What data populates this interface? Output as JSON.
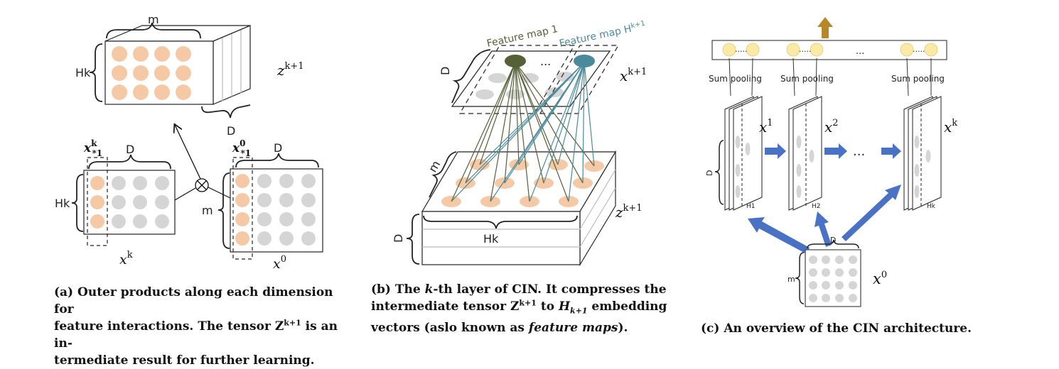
{
  "panel_a": {
    "m": "m",
    "hk": "Hk",
    "d": "D",
    "zk1": "z",
    "zk1_sup": "k+1",
    "xk1": "x",
    "xk1_sup": "k",
    "xk1_sub": "*1",
    "x01": "x",
    "x01_sup": "0",
    "x01_sub": "*1",
    "xk": "x",
    "xk_sup": "k",
    "x0": "x",
    "x0_sup": "0",
    "d1": "D",
    "hk2": "Hk",
    "d2": "D",
    "m2": "m",
    "caption_1": "(a) Outer products along each dimension for",
    "caption_2": "feature interactions. The tensor Z",
    "caption_2_sup": "k+1",
    "caption_2_end": " is an in-",
    "caption_3": "termediate result for further learning."
  },
  "panel_b": {
    "feature_map_1": "Feature map 1",
    "feature_map_h": "Feature map H",
    "feature_map_h_sub": "k+1",
    "ellipsis": "...",
    "d_top": "D",
    "xk1": "x",
    "xk1_sup": "k+1",
    "m": "m",
    "zk1": "z",
    "zk1_sup": "k+1",
    "hk": "Hk",
    "d": "D",
    "caption_1a": "(b) The ",
    "caption_1k": "k",
    "caption_1b": "-th layer of CIN. It compresses the",
    "caption_2a": "intermediate tensor Z",
    "caption_2_sup": "k+1",
    "caption_2b": " to ",
    "caption_2h": "H",
    "caption_2h_sub": "k+1",
    "caption_2c": " embedding",
    "caption_3a": "vectors (aslo known as ",
    "caption_3i": "feature maps",
    "caption_3b": ")."
  },
  "panel_c": {
    "sum_pooling_1": "Sum pooling",
    "sum_pooling_2": "Sum pooling",
    "sum_pooling_3": "Sum pooling",
    "top_dots_1": ".....",
    "top_dots_2": ".....",
    "top_dots_3": "...",
    "top_dots_4": ".....",
    "x1": "x",
    "x1_sup": "1",
    "x2": "x",
    "x2_sup": "2",
    "xk": "x",
    "xk_sup": "k",
    "ellipsis": "...",
    "h1": "H1",
    "h2": "H2",
    "hk": "Hk",
    "d": "D",
    "d_bottom": "D",
    "m": "m",
    "x0": "x",
    "x0_sup": "0",
    "caption": "(c) An overview of the CIN architecture."
  },
  "colors": {
    "orange_dot": "#f5c9a5",
    "gray_dot": "#d5d5d5",
    "dark_green": "#556036",
    "teal": "#4a8a9b",
    "blue_arrow": "#4a72c4",
    "gold_arrow": "#b8872a",
    "yellow_dot": "#fbe9a6"
  }
}
